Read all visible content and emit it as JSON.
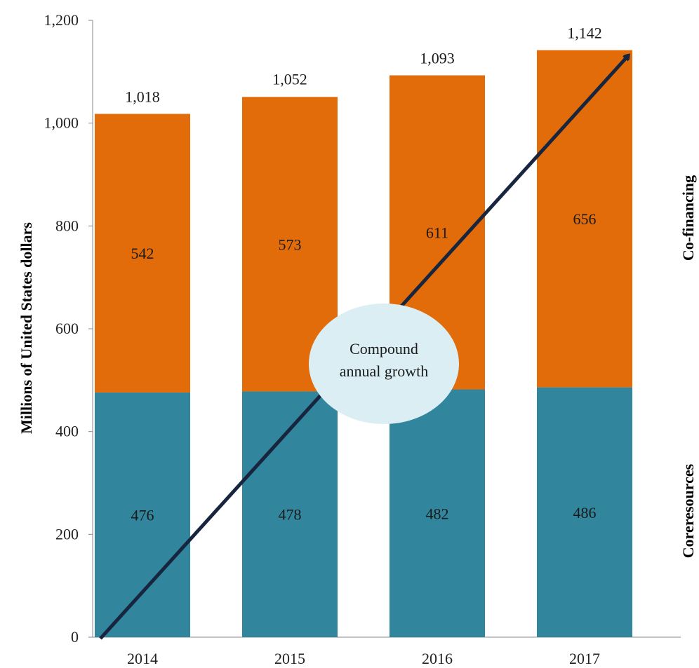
{
  "chart_data": {
    "type": "bar",
    "stacked": true,
    "categories": [
      "2014",
      "2015",
      "2016",
      "2017"
    ],
    "series": [
      {
        "name": "Coreresources",
        "values": [
          476,
          478,
          482,
          486
        ],
        "color": "#31859c"
      },
      {
        "name": "Co-financing",
        "values": [
          542,
          573,
          611,
          656
        ],
        "color": "#e36c0a"
      }
    ],
    "totals": [
      1018,
      1052,
      1093,
      1142
    ],
    "total_labels": [
      "1,018",
      "1,052",
      "1,093",
      "1,142"
    ],
    "ylabel": "Millions  of United States dollars",
    "ylim": [
      0,
      1200
    ],
    "yticks": [
      0,
      200,
      400,
      600,
      800,
      1000,
      1200
    ],
    "ytick_labels": [
      "0",
      "200",
      "400",
      "600",
      "800",
      "1,000",
      "1,200"
    ],
    "grid": false,
    "legend": "none",
    "annotation": {
      "lines": [
        "Compound",
        "annual growth"
      ],
      "arrow_color": "#17253f",
      "bubble_color": "#dbeef4"
    }
  }
}
